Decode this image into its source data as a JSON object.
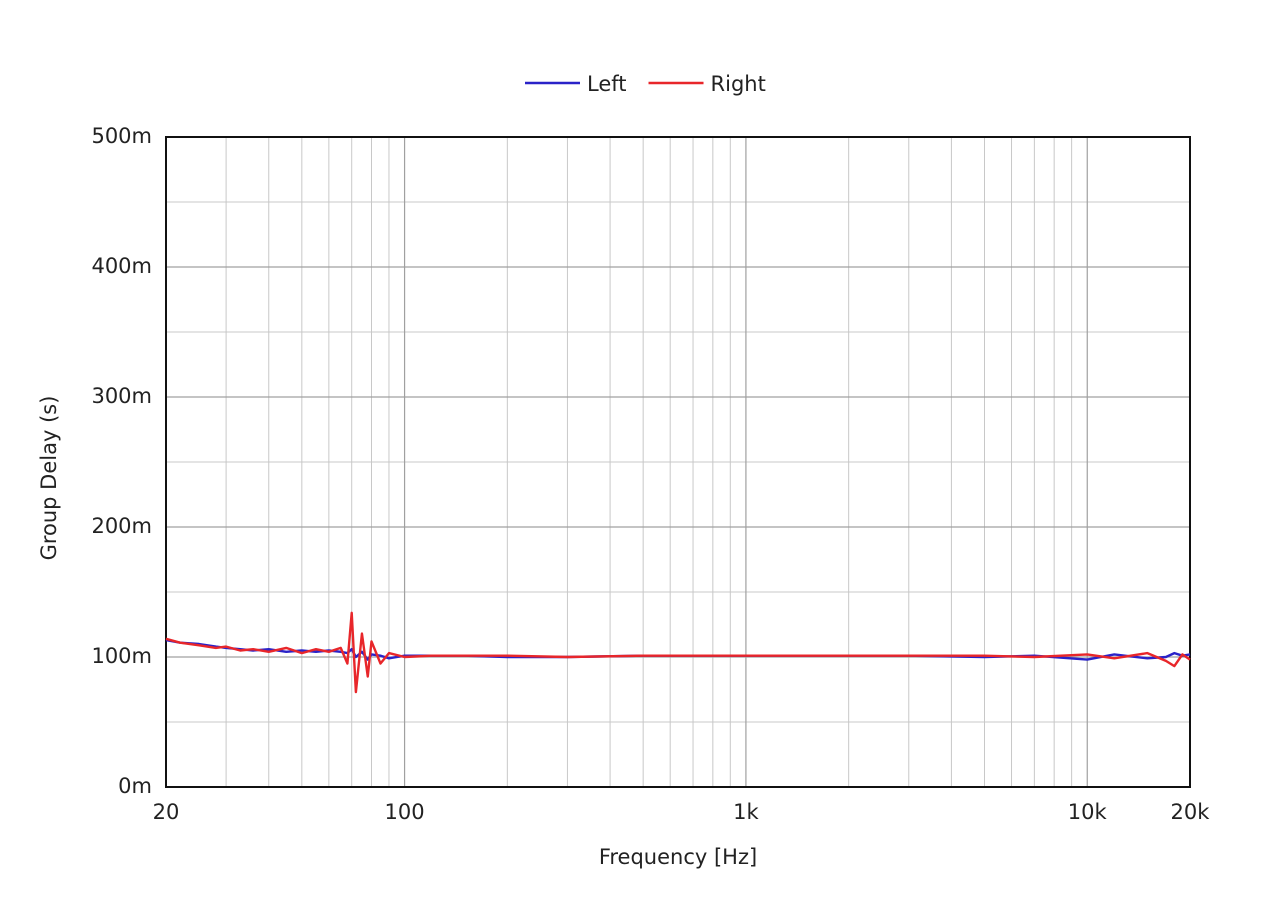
{
  "chart_data": {
    "type": "line",
    "x_label": "Frequency [Hz]",
    "y_label": "Group Delay (s)",
    "x_log": true,
    "grid": true,
    "legend": "top",
    "xlim": [
      20,
      20000
    ],
    "xticks": [
      20,
      100,
      {
        "value": 1000,
        "label": "1k"
      },
      {
        "value": 10000,
        "label": "10k"
      },
      {
        "value": 20000,
        "label": "20k"
      }
    ],
    "x_minor_ticks": [
      30,
      40,
      50,
      60,
      70,
      80,
      90,
      200,
      300,
      400,
      500,
      600,
      700,
      800,
      900,
      2000,
      3000,
      4000,
      5000,
      6000,
      7000,
      8000,
      9000
    ],
    "ylim": [
      0,
      0.5
    ],
    "yticks": [
      {
        "value": 0,
        "label": "0m"
      },
      {
        "value": 0.1,
        "label": "100m"
      },
      {
        "value": 0.2,
        "label": "200m"
      },
      {
        "value": 0.3,
        "label": "300m"
      },
      {
        "value": 0.4,
        "label": "400m"
      },
      {
        "value": 0.5,
        "label": "500m"
      }
    ],
    "y_minor_ticks": [
      0.05,
      0.15,
      0.25,
      0.35,
      0.45
    ],
    "x": [
      20,
      22,
      25,
      28,
      30,
      33,
      36,
      40,
      45,
      50,
      55,
      60,
      65,
      68,
      70,
      72,
      75,
      78,
      80,
      85,
      90,
      100,
      120,
      150,
      200,
      300,
      500,
      1000,
      2000,
      3000,
      5000,
      7000,
      10000,
      12000,
      15000,
      17000,
      18000,
      19000,
      20000
    ],
    "series": [
      {
        "name": "Left",
        "color": "#2a22c8",
        "values": [
          0.113,
          0.111,
          0.11,
          0.108,
          0.107,
          0.106,
          0.105,
          0.106,
          0.104,
          0.105,
          0.104,
          0.105,
          0.104,
          0.103,
          0.106,
          0.1,
          0.104,
          0.098,
          0.102,
          0.101,
          0.099,
          0.101,
          0.101,
          0.101,
          0.1,
          0.1,
          0.101,
          0.101,
          0.101,
          0.101,
          0.1,
          0.101,
          0.098,
          0.102,
          0.099,
          0.1,
          0.103,
          0.101,
          0.102
        ]
      },
      {
        "name": "Right",
        "color": "#e8262a",
        "values": [
          0.114,
          0.111,
          0.109,
          0.107,
          0.108,
          0.105,
          0.106,
          0.104,
          0.107,
          0.103,
          0.106,
          0.104,
          0.107,
          0.095,
          0.134,
          0.073,
          0.118,
          0.085,
          0.112,
          0.095,
          0.103,
          0.1,
          0.101,
          0.101,
          0.101,
          0.1,
          0.101,
          0.101,
          0.101,
          0.101,
          0.101,
          0.1,
          0.102,
          0.099,
          0.103,
          0.097,
          0.093,
          0.102,
          0.098
        ]
      }
    ]
  }
}
